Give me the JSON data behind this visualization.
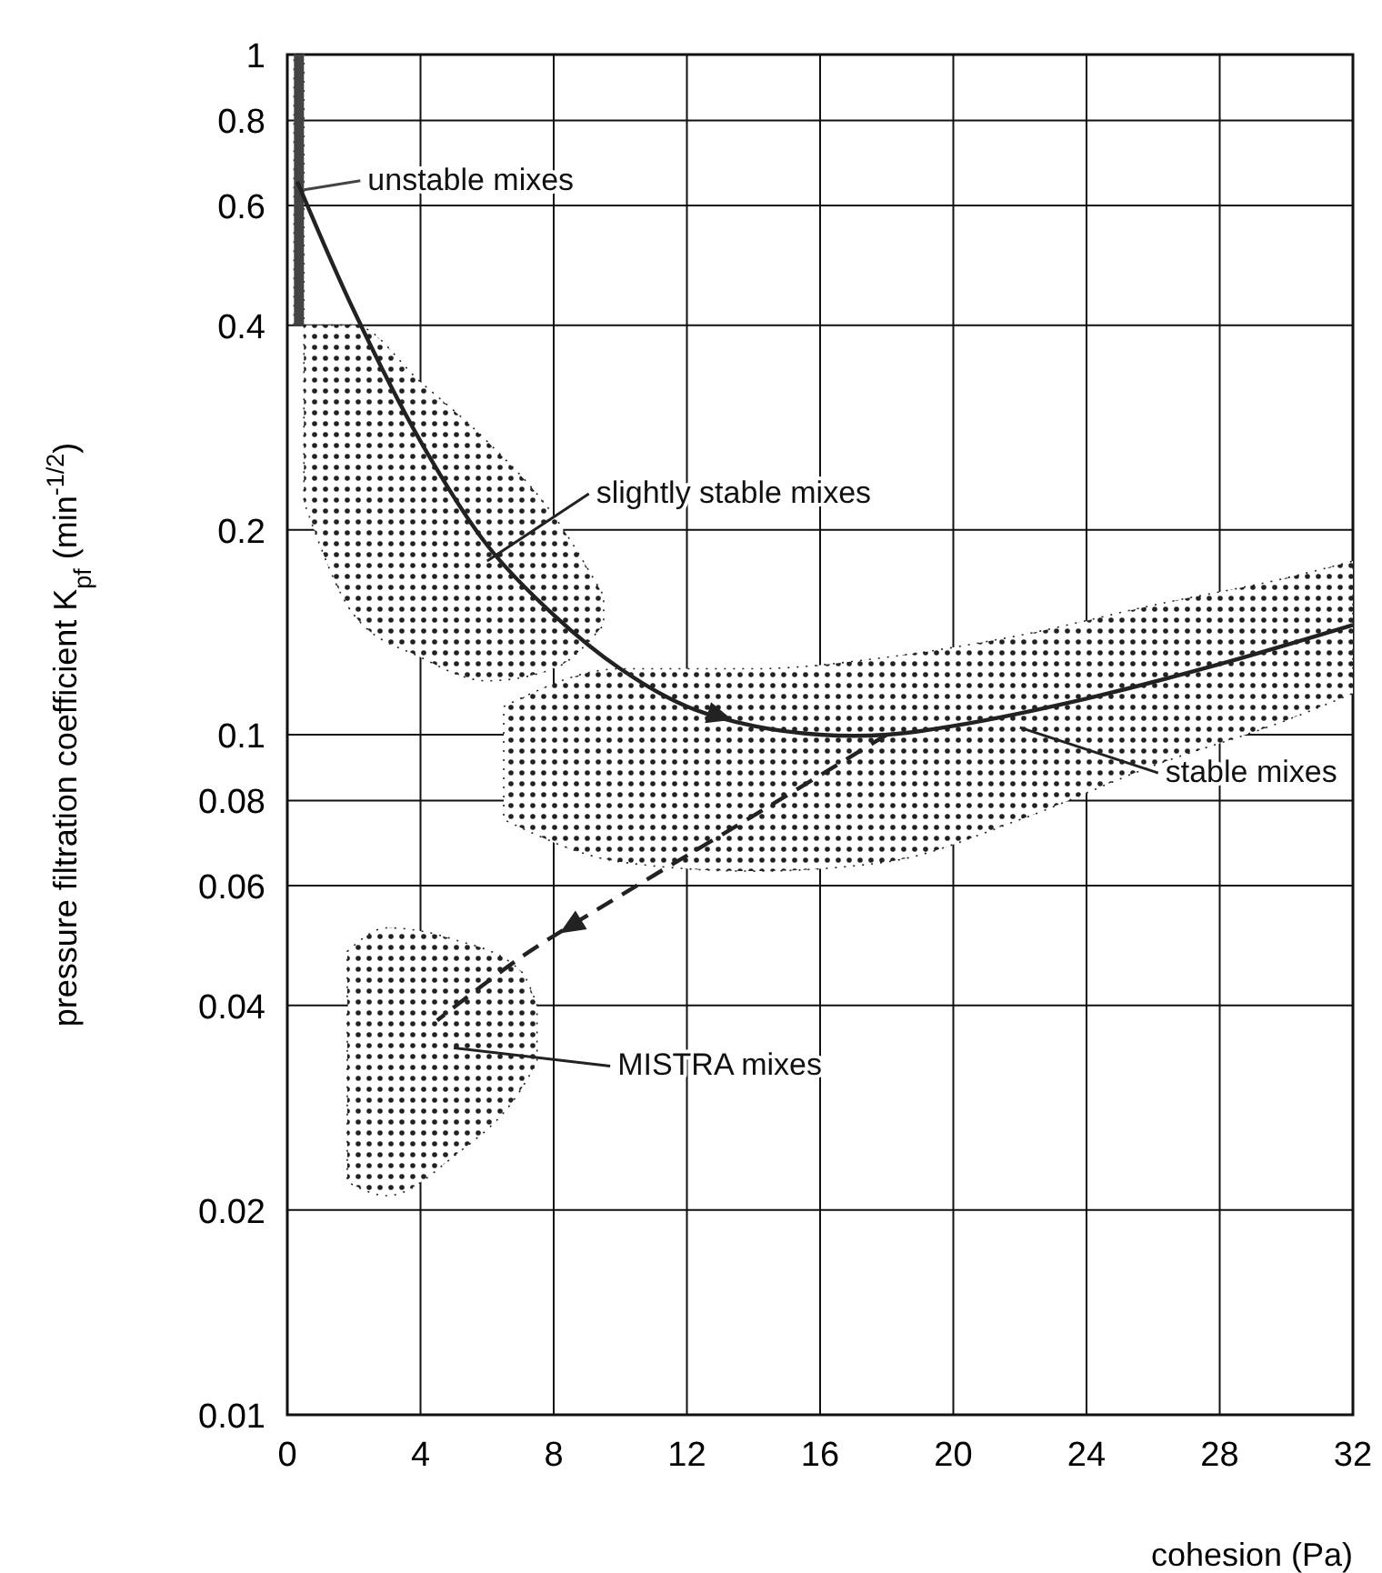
{
  "chart_data": {
    "type": "line",
    "xlabel": "cohesion (Pa)",
    "ylabel": "pressure filtration coefficient K$_{pf}$ (min$^{-1/2}$)",
    "log": "y",
    "grid": true,
    "xlim": [
      0,
      32
    ],
    "xticks": [
      0,
      4,
      8,
      12,
      16,
      20,
      24,
      28,
      32
    ],
    "ylim": [
      0.01,
      1
    ],
    "yticks": [
      0.01,
      0.02,
      0.04,
      0.06,
      0.08,
      0.1,
      0.2,
      0.4,
      0.6,
      0.8,
      1
    ],
    "series": [
      {
        "type": "area",
        "name": "unstable mixes",
        "color": "#444444",
        "x": [
          0.2,
          0.5
        ],
        "values": [
          null,
          null
        ],
        "upper": [
          1,
          1
        ],
        "lower": [
          0.4,
          0.4
        ]
      },
      {
        "type": "area",
        "name": "slightly stable mixes",
        "color": "#222222",
        "x": [
          0.5,
          2,
          4,
          6,
          8,
          9.5
        ],
        "values": [
          null,
          null,
          null,
          null,
          null,
          null
        ],
        "upper": [
          0.4,
          0.4,
          0.33,
          0.27,
          0.21,
          0.16
        ],
        "lower": [
          0.22,
          0.15,
          0.13,
          0.12,
          0.125,
          0.145
        ]
      },
      {
        "type": "area",
        "name": "stable mixes",
        "color": "#222222",
        "x": [
          6.5,
          10,
          14,
          18,
          22,
          26,
          30,
          32
        ],
        "values": [
          null,
          null,
          null,
          null,
          null,
          null,
          null,
          null
        ],
        "upper": [
          0.11,
          0.125,
          0.125,
          0.13,
          0.14,
          0.155,
          0.17,
          0.18
        ],
        "lower": [
          0.075,
          0.065,
          0.063,
          0.065,
          0.075,
          0.09,
          0.105,
          0.115
        ]
      },
      {
        "type": "area",
        "name": "MISTRA  mixes",
        "color": "#222222",
        "x": [
          1.8,
          3,
          5,
          7,
          7.5
        ],
        "values": [
          null,
          null,
          null,
          null,
          null
        ],
        "upper": [
          0.048,
          0.052,
          0.05,
          0.045,
          0.04
        ],
        "lower": [
          0.022,
          0.021,
          0.024,
          0.03,
          0.033
        ]
      },
      {
        "type": "line",
        "color": "#222222",
        "line_style": "solid",
        "x": [
          0.3,
          2,
          4,
          6,
          8,
          10,
          12,
          14,
          16,
          18,
          20,
          24,
          28,
          32
        ],
        "values": [
          0.65,
          0.42,
          0.27,
          0.19,
          0.15,
          0.125,
          0.11,
          0.103,
          0.1,
          0.1,
          0.103,
          0.113,
          0.127,
          0.145
        ]
      },
      {
        "type": "line",
        "color": "#222222",
        "line_style": "dashed",
        "x": [
          18,
          14,
          10,
          7,
          4.5
        ],
        "values": [
          0.1,
          0.076,
          0.058,
          0.047,
          0.038
        ]
      }
    ]
  }
}
